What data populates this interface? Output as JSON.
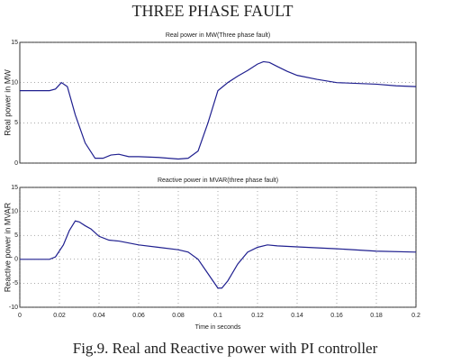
{
  "title": "THREE PHASE FAULT",
  "caption": "Fig.9. Real and Reactive power with PI controller",
  "chart_data": [
    {
      "type": "line",
      "title": "Real power in MW(Three phase fault)",
      "y_label": "Real power in MW",
      "x": [
        0,
        0.015,
        0.018,
        0.021,
        0.024,
        0.028,
        0.033,
        0.038,
        0.042,
        0.046,
        0.05,
        0.055,
        0.06,
        0.07,
        0.08,
        0.085,
        0.09,
        0.095,
        0.1,
        0.105,
        0.11,
        0.115,
        0.12,
        0.123,
        0.126,
        0.13,
        0.135,
        0.14,
        0.15,
        0.16,
        0.17,
        0.18,
        0.19,
        0.2
      ],
      "series": [
        {
          "name": "Real power",
          "color": "#1f1f8f",
          "values": [
            9,
            9,
            9.2,
            10,
            9.5,
            6,
            2.5,
            0.6,
            0.6,
            1,
            1.1,
            0.8,
            0.8,
            0.7,
            0.5,
            0.6,
            1.5,
            5,
            9,
            10,
            10.8,
            11.5,
            12.3,
            12.6,
            12.5,
            12,
            11.4,
            10.9,
            10.4,
            10,
            9.9,
            9.8,
            9.6,
            9.5
          ]
        }
      ],
      "xlim": [
        0,
        0.2
      ],
      "ylim": [
        0,
        15
      ],
      "yticks": [
        0,
        5,
        10,
        15
      ],
      "grid": true
    },
    {
      "type": "line",
      "title": "Reactive power in MVAR(three phase fault)",
      "y_label": "Reactive power in MVAR",
      "x_label": "Time in seconds",
      "x": [
        0,
        0.015,
        0.018,
        0.022,
        0.025,
        0.028,
        0.03,
        0.033,
        0.036,
        0.04,
        0.045,
        0.05,
        0.06,
        0.07,
        0.08,
        0.085,
        0.09,
        0.095,
        0.1,
        0.102,
        0.105,
        0.11,
        0.115,
        0.12,
        0.125,
        0.13,
        0.14,
        0.16,
        0.18,
        0.2
      ],
      "series": [
        {
          "name": "Reactive power",
          "color": "#1f1f8f",
          "values": [
            0,
            0,
            0.5,
            3,
            6,
            8,
            7.8,
            7,
            6.3,
            4.8,
            4,
            3.8,
            3,
            2.5,
            2,
            1.5,
            0,
            -3,
            -6,
            -6,
            -4.5,
            -1,
            1.5,
            2.5,
            3,
            2.8,
            2.6,
            2.2,
            1.7,
            1.5
          ]
        }
      ],
      "xlim": [
        0,
        0.2
      ],
      "ylim": [
        -10,
        15
      ],
      "yticks": [
        -10,
        -5,
        0,
        5,
        10,
        15
      ],
      "xticks": [
        0,
        0.02,
        0.04,
        0.06,
        0.08,
        0.1,
        0.12,
        0.14,
        0.16,
        0.18,
        0.2
      ],
      "grid": true
    }
  ]
}
